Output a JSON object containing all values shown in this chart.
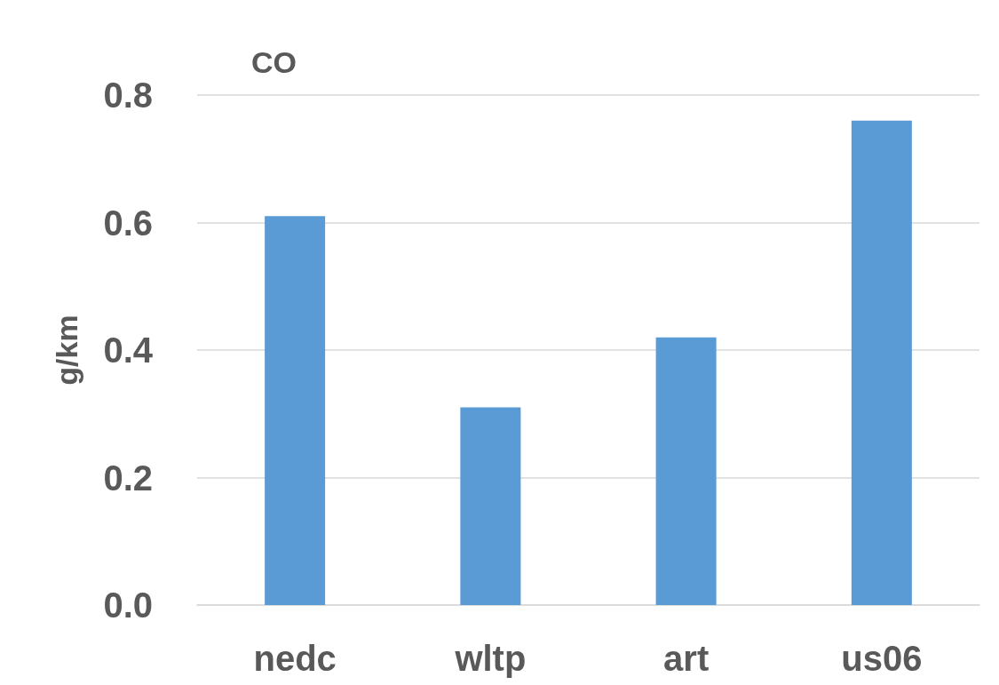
{
  "chart_data": {
    "type": "bar",
    "title": "CO",
    "ylabel": "g/km",
    "categories": [
      "nedc",
      "wltp",
      "art",
      "us06"
    ],
    "values": [
      0.61,
      0.31,
      0.42,
      0.76
    ],
    "color": "#5b9bd5",
    "ylim": [
      0,
      0.8
    ],
    "yticks": [
      {
        "value": 0,
        "label": "0.0"
      },
      0.2,
      0.4,
      0.6,
      0.8
    ],
    "grid": "y"
  }
}
